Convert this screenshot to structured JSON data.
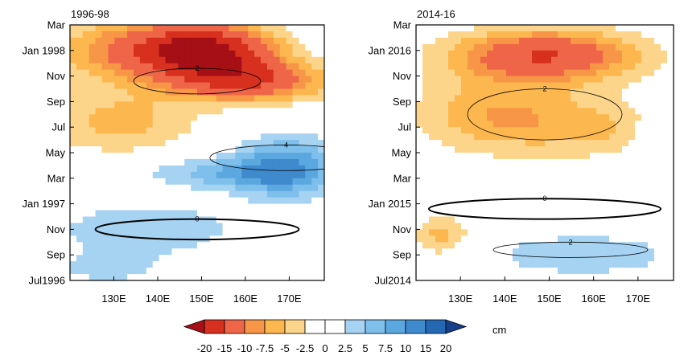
{
  "colors": {
    "scale": [
      "#a50f15",
      "#d7301f",
      "#ef6548",
      "#f79646",
      "#fdb74f",
      "#fdd58a",
      "#ffffff",
      "#ffffff",
      "#a6d3f2",
      "#7fbfec",
      "#5ba8e0",
      "#3f89cd",
      "#2468b4",
      "#173f8a"
    ],
    "contour": "#000000"
  },
  "chart_data": {
    "type": "heatmap",
    "colorbar": {
      "ticks": [
        "-20",
        "-15",
        "-10",
        "-7.5",
        "-5",
        "-2.5",
        "0",
        "2.5",
        "5",
        "7.5",
        "10",
        "15",
        "20"
      ],
      "levels": [
        -20,
        -15,
        -10,
        -7.5,
        -5,
        -2.5,
        0,
        2.5,
        5,
        7.5,
        10,
        15,
        20
      ],
      "unit": "cm"
    },
    "panels": [
      {
        "title": "1996-98",
        "x_ticks": [
          "130E",
          "140E",
          "150E",
          "160E",
          "170E"
        ],
        "x_values": [
          130,
          140,
          150,
          160,
          170
        ],
        "xlim": [
          120,
          178
        ],
        "y_ticks": [
          "Jul1996",
          "Sep",
          "Nov",
          "Jan 1997",
          "Mar",
          "May",
          "Jul",
          "Sep",
          "Nov",
          "Jan 1998",
          "Mar"
        ],
        "ylim_months": [
          0,
          20
        ],
        "fields": [
          {
            "cx": 0.3,
            "cy": 0.9,
            "rx": 0.35,
            "ry": 0.12,
            "v": -11
          },
          {
            "cx": 0.55,
            "cy": 0.9,
            "rx": 0.25,
            "ry": 0.1,
            "v": -17
          },
          {
            "cx": 0.7,
            "cy": 0.78,
            "rx": 0.3,
            "ry": 0.08,
            "v": -14
          },
          {
            "cx": 0.2,
            "cy": 0.62,
            "rx": 0.3,
            "ry": 0.12,
            "v": -6
          },
          {
            "cx": 0.85,
            "cy": 0.44,
            "rx": 0.2,
            "ry": 0.12,
            "v": 10
          },
          {
            "cx": 0.6,
            "cy": 0.42,
            "rx": 0.3,
            "ry": 0.06,
            "v": 6
          },
          {
            "cx": 0.3,
            "cy": 0.2,
            "rx": 0.35,
            "ry": 0.1,
            "v": 5
          },
          {
            "cx": 0.15,
            "cy": 0.05,
            "rx": 0.2,
            "ry": 0.06,
            "v": 4
          }
        ],
        "contours": [
          {
            "v": "2",
            "cx": 0.5,
            "cy": 0.78,
            "rx": 0.25,
            "ry": 0.05
          },
          {
            "v": "4",
            "cx": 0.85,
            "cy": 0.48,
            "rx": 0.3,
            "ry": 0.05
          },
          {
            "v": "0",
            "cx": 0.5,
            "cy": 0.2,
            "rx": 0.4,
            "ry": 0.04
          }
        ]
      },
      {
        "title": "2014-16",
        "x_ticks": [
          "130E",
          "140E",
          "150E",
          "160E",
          "170E"
        ],
        "x_values": [
          130,
          140,
          150,
          160,
          170
        ],
        "xlim": [
          120,
          178
        ],
        "y_ticks": [
          "Jul2014",
          "Sep",
          "Nov",
          "Jan 2015",
          "Mar",
          "May",
          "Jul",
          "Sep",
          "Nov",
          "Jan 2016",
          "Mar"
        ],
        "ylim_months": [
          0,
          20
        ],
        "fields": [
          {
            "cx": 0.5,
            "cy": 0.88,
            "rx": 0.35,
            "ry": 0.1,
            "v": -15
          },
          {
            "cx": 0.3,
            "cy": 0.65,
            "rx": 0.3,
            "ry": 0.15,
            "v": -7
          },
          {
            "cx": 0.7,
            "cy": 0.6,
            "rx": 0.3,
            "ry": 0.12,
            "v": -5
          },
          {
            "cx": 0.1,
            "cy": 0.18,
            "rx": 0.1,
            "ry": 0.08,
            "v": -6
          },
          {
            "cx": 0.65,
            "cy": 0.1,
            "rx": 0.35,
            "ry": 0.08,
            "v": 5
          },
          {
            "cx": 0.95,
            "cy": 0.55,
            "rx": 0.1,
            "ry": 0.12,
            "v": 4
          }
        ],
        "contours": [
          {
            "v": "2",
            "cx": 0.5,
            "cy": 0.65,
            "rx": 0.3,
            "ry": 0.1
          },
          {
            "v": "0",
            "cx": 0.5,
            "cy": 0.28,
            "rx": 0.45,
            "ry": 0.04
          },
          {
            "v": "2",
            "cx": 0.6,
            "cy": 0.12,
            "rx": 0.3,
            "ry": 0.03
          }
        ]
      }
    ]
  }
}
